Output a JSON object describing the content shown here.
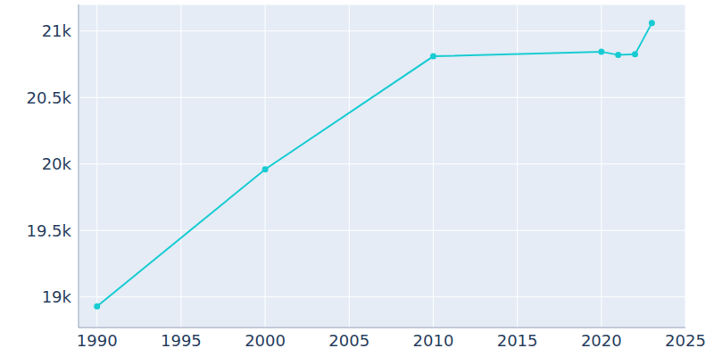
{
  "chart_data": {
    "type": "line",
    "x": [
      1990,
      2000,
      2010,
      2020,
      2021,
      2022,
      2023
    ],
    "values": [
      18930,
      19960,
      20810,
      20845,
      20820,
      20825,
      21060
    ],
    "color": "#17ccd2",
    "xlim": [
      1988.9,
      2025
    ],
    "xticks": [
      1990,
      1995,
      2000,
      2005,
      2010,
      2015,
      2020,
      2025
    ],
    "ylim": [
      18770,
      21200
    ],
    "yticks": [
      {
        "value": 19000,
        "label": "19k"
      },
      {
        "value": 19500,
        "label": "19.5k"
      },
      {
        "value": 20000,
        "label": "20k"
      },
      {
        "value": 20500,
        "label": "20.5k"
      },
      {
        "value": 21000,
        "label": "21k"
      }
    ],
    "grid": true,
    "marker": "circle"
  }
}
